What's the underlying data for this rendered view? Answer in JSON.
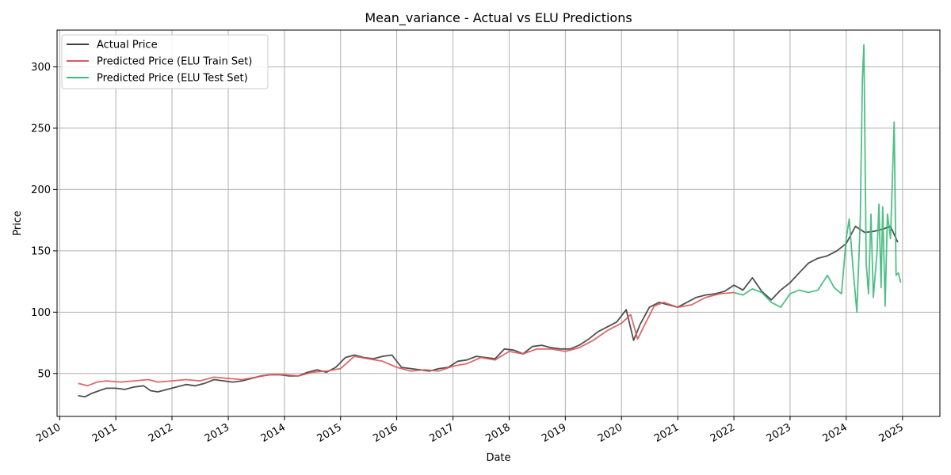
{
  "chart_data": {
    "type": "line",
    "title": "Mean_variance - Actual vs ELU Predictions",
    "xlabel": "Date",
    "ylabel": "Price",
    "x_range": [
      "2009-12-15",
      "2025-09-01"
    ],
    "ylim": [
      15,
      330
    ],
    "x_ticks": [
      "2010",
      "2011",
      "2012",
      "2013",
      "2014",
      "2015",
      "2016",
      "2017",
      "2018",
      "2019",
      "2020",
      "2021",
      "2022",
      "2023",
      "2024",
      "2025"
    ],
    "y_ticks": [
      50,
      100,
      150,
      200,
      250,
      300
    ],
    "grid": true,
    "legend_position": "top-left",
    "series": [
      {
        "name": "Actual Price",
        "color": "#3d3d3d",
        "points": [
          [
            "2010-05-01",
            32
          ],
          [
            "2010-06-15",
            31
          ],
          [
            "2010-08-01",
            34
          ],
          [
            "2010-09-15",
            36
          ],
          [
            "2010-11-01",
            38
          ],
          [
            "2011-01-01",
            38
          ],
          [
            "2011-03-01",
            37
          ],
          [
            "2011-05-01",
            39
          ],
          [
            "2011-07-01",
            40
          ],
          [
            "2011-08-15",
            36
          ],
          [
            "2011-10-01",
            35
          ],
          [
            "2011-12-01",
            37
          ],
          [
            "2012-02-01",
            39
          ],
          [
            "2012-04-01",
            41
          ],
          [
            "2012-06-01",
            40
          ],
          [
            "2012-08-01",
            42
          ],
          [
            "2012-10-01",
            45
          ],
          [
            "2012-12-01",
            44
          ],
          [
            "2013-02-01",
            43
          ],
          [
            "2013-04-01",
            44
          ],
          [
            "2013-06-01",
            46
          ],
          [
            "2013-08-01",
            48
          ],
          [
            "2013-10-01",
            49
          ],
          [
            "2013-12-01",
            49
          ],
          [
            "2014-02-01",
            48
          ],
          [
            "2014-04-01",
            48
          ],
          [
            "2014-06-01",
            51
          ],
          [
            "2014-08-01",
            53
          ],
          [
            "2014-10-01",
            51
          ],
          [
            "2014-12-01",
            55
          ],
          [
            "2015-02-01",
            63
          ],
          [
            "2015-04-01",
            65
          ],
          [
            "2015-06-01",
            63
          ],
          [
            "2015-08-01",
            62
          ],
          [
            "2015-10-01",
            64
          ],
          [
            "2015-12-01",
            65
          ],
          [
            "2016-02-01",
            55
          ],
          [
            "2016-04-01",
            54
          ],
          [
            "2016-06-01",
            53
          ],
          [
            "2016-08-01",
            52
          ],
          [
            "2016-10-01",
            54
          ],
          [
            "2016-12-01",
            55
          ],
          [
            "2017-02-01",
            60
          ],
          [
            "2017-04-01",
            61
          ],
          [
            "2017-06-01",
            64
          ],
          [
            "2017-08-01",
            63
          ],
          [
            "2017-10-01",
            62
          ],
          [
            "2017-12-01",
            70
          ],
          [
            "2018-02-01",
            69
          ],
          [
            "2018-04-01",
            66
          ],
          [
            "2018-06-01",
            72
          ],
          [
            "2018-08-01",
            73
          ],
          [
            "2018-10-01",
            71
          ],
          [
            "2018-12-01",
            70
          ],
          [
            "2019-02-01",
            70
          ],
          [
            "2019-04-01",
            73
          ],
          [
            "2019-06-01",
            78
          ],
          [
            "2019-08-01",
            84
          ],
          [
            "2019-10-01",
            88
          ],
          [
            "2019-12-01",
            92
          ],
          [
            "2020-02-01",
            102
          ],
          [
            "2020-03-20",
            77
          ],
          [
            "2020-05-01",
            90
          ],
          [
            "2020-07-01",
            104
          ],
          [
            "2020-09-01",
            108
          ],
          [
            "2020-11-01",
            106
          ],
          [
            "2021-01-01",
            104
          ],
          [
            "2021-03-01",
            108
          ],
          [
            "2021-05-01",
            112
          ],
          [
            "2021-07-01",
            114
          ],
          [
            "2021-09-01",
            115
          ],
          [
            "2021-11-01",
            117
          ],
          [
            "2022-01-01",
            122
          ],
          [
            "2022-03-01",
            118
          ],
          [
            "2022-05-01",
            128
          ],
          [
            "2022-07-01",
            117
          ],
          [
            "2022-09-01",
            110
          ],
          [
            "2022-11-01",
            118
          ],
          [
            "2023-01-01",
            124
          ],
          [
            "2023-03-01",
            132
          ],
          [
            "2023-05-01",
            140
          ],
          [
            "2023-07-01",
            144
          ],
          [
            "2023-09-01",
            146
          ],
          [
            "2023-11-01",
            150
          ],
          [
            "2024-01-01",
            156
          ],
          [
            "2024-03-01",
            170
          ],
          [
            "2024-05-01",
            165
          ],
          [
            "2024-07-01",
            166
          ],
          [
            "2024-09-01",
            168
          ],
          [
            "2024-10-15",
            170
          ],
          [
            "2024-12-01",
            157
          ]
        ]
      },
      {
        "name": "Predicted Price (ELU Train Set)",
        "color": "#d9595b",
        "points": [
          [
            "2010-05-01",
            42
          ],
          [
            "2010-07-01",
            40
          ],
          [
            "2010-09-01",
            43
          ],
          [
            "2010-11-01",
            44
          ],
          [
            "2011-02-01",
            43
          ],
          [
            "2011-05-01",
            44
          ],
          [
            "2011-08-01",
            45
          ],
          [
            "2011-10-01",
            43
          ],
          [
            "2012-01-01",
            44
          ],
          [
            "2012-04-01",
            45
          ],
          [
            "2012-07-01",
            44
          ],
          [
            "2012-10-01",
            47
          ],
          [
            "2013-01-01",
            46
          ],
          [
            "2013-04-01",
            45
          ],
          [
            "2013-07-01",
            47
          ],
          [
            "2013-10-01",
            49
          ],
          [
            "2014-01-01",
            49
          ],
          [
            "2014-04-01",
            48
          ],
          [
            "2014-07-01",
            51
          ],
          [
            "2014-10-01",
            52
          ],
          [
            "2015-01-01",
            54
          ],
          [
            "2015-04-01",
            64
          ],
          [
            "2015-07-01",
            62
          ],
          [
            "2015-10-01",
            60
          ],
          [
            "2016-01-01",
            55
          ],
          [
            "2016-04-01",
            52
          ],
          [
            "2016-07-01",
            53
          ],
          [
            "2016-10-01",
            52
          ],
          [
            "2017-01-01",
            56
          ],
          [
            "2017-04-01",
            58
          ],
          [
            "2017-07-01",
            63
          ],
          [
            "2017-10-01",
            61
          ],
          [
            "2018-01-01",
            68
          ],
          [
            "2018-04-01",
            66
          ],
          [
            "2018-07-01",
            70
          ],
          [
            "2018-10-01",
            70
          ],
          [
            "2019-01-01",
            68
          ],
          [
            "2019-04-01",
            71
          ],
          [
            "2019-07-01",
            77
          ],
          [
            "2019-10-01",
            85
          ],
          [
            "2020-01-01",
            91
          ],
          [
            "2020-03-01",
            98
          ],
          [
            "2020-04-15",
            78
          ],
          [
            "2020-06-01",
            90
          ],
          [
            "2020-08-01",
            105
          ],
          [
            "2020-10-01",
            108
          ],
          [
            "2021-01-01",
            104
          ],
          [
            "2021-04-01",
            106
          ],
          [
            "2021-07-01",
            112
          ],
          [
            "2021-10-01",
            115
          ],
          [
            "2022-01-01",
            116
          ]
        ]
      },
      {
        "name": "Predicted Price (ELU Test Set)",
        "color": "#3db87a",
        "points": [
          [
            "2022-01-01",
            116
          ],
          [
            "2022-03-01",
            114
          ],
          [
            "2022-05-01",
            119
          ],
          [
            "2022-07-01",
            116
          ],
          [
            "2022-09-01",
            108
          ],
          [
            "2022-11-01",
            104
          ],
          [
            "2023-01-01",
            115
          ],
          [
            "2023-03-01",
            118
          ],
          [
            "2023-05-01",
            116
          ],
          [
            "2023-07-01",
            118
          ],
          [
            "2023-09-01",
            130
          ],
          [
            "2023-10-15",
            120
          ],
          [
            "2023-12-01",
            115
          ],
          [
            "2024-01-01",
            160
          ],
          [
            "2024-01-20",
            176
          ],
          [
            "2024-02-15",
            135
          ],
          [
            "2024-03-10",
            100
          ],
          [
            "2024-04-01",
            175
          ],
          [
            "2024-04-15",
            290
          ],
          [
            "2024-04-25",
            318
          ],
          [
            "2024-05-10",
            140
          ],
          [
            "2024-05-25",
            115
          ],
          [
            "2024-06-10",
            180
          ],
          [
            "2024-06-25",
            112
          ],
          [
            "2024-07-20",
            150
          ],
          [
            "2024-08-01",
            188
          ],
          [
            "2024-08-15",
            120
          ],
          [
            "2024-08-25",
            186
          ],
          [
            "2024-09-10",
            105
          ],
          [
            "2024-09-25",
            180
          ],
          [
            "2024-10-15",
            160
          ],
          [
            "2024-11-08",
            255
          ],
          [
            "2024-11-20",
            130
          ],
          [
            "2024-12-05",
            132
          ],
          [
            "2024-12-20",
            124
          ]
        ]
      }
    ]
  }
}
